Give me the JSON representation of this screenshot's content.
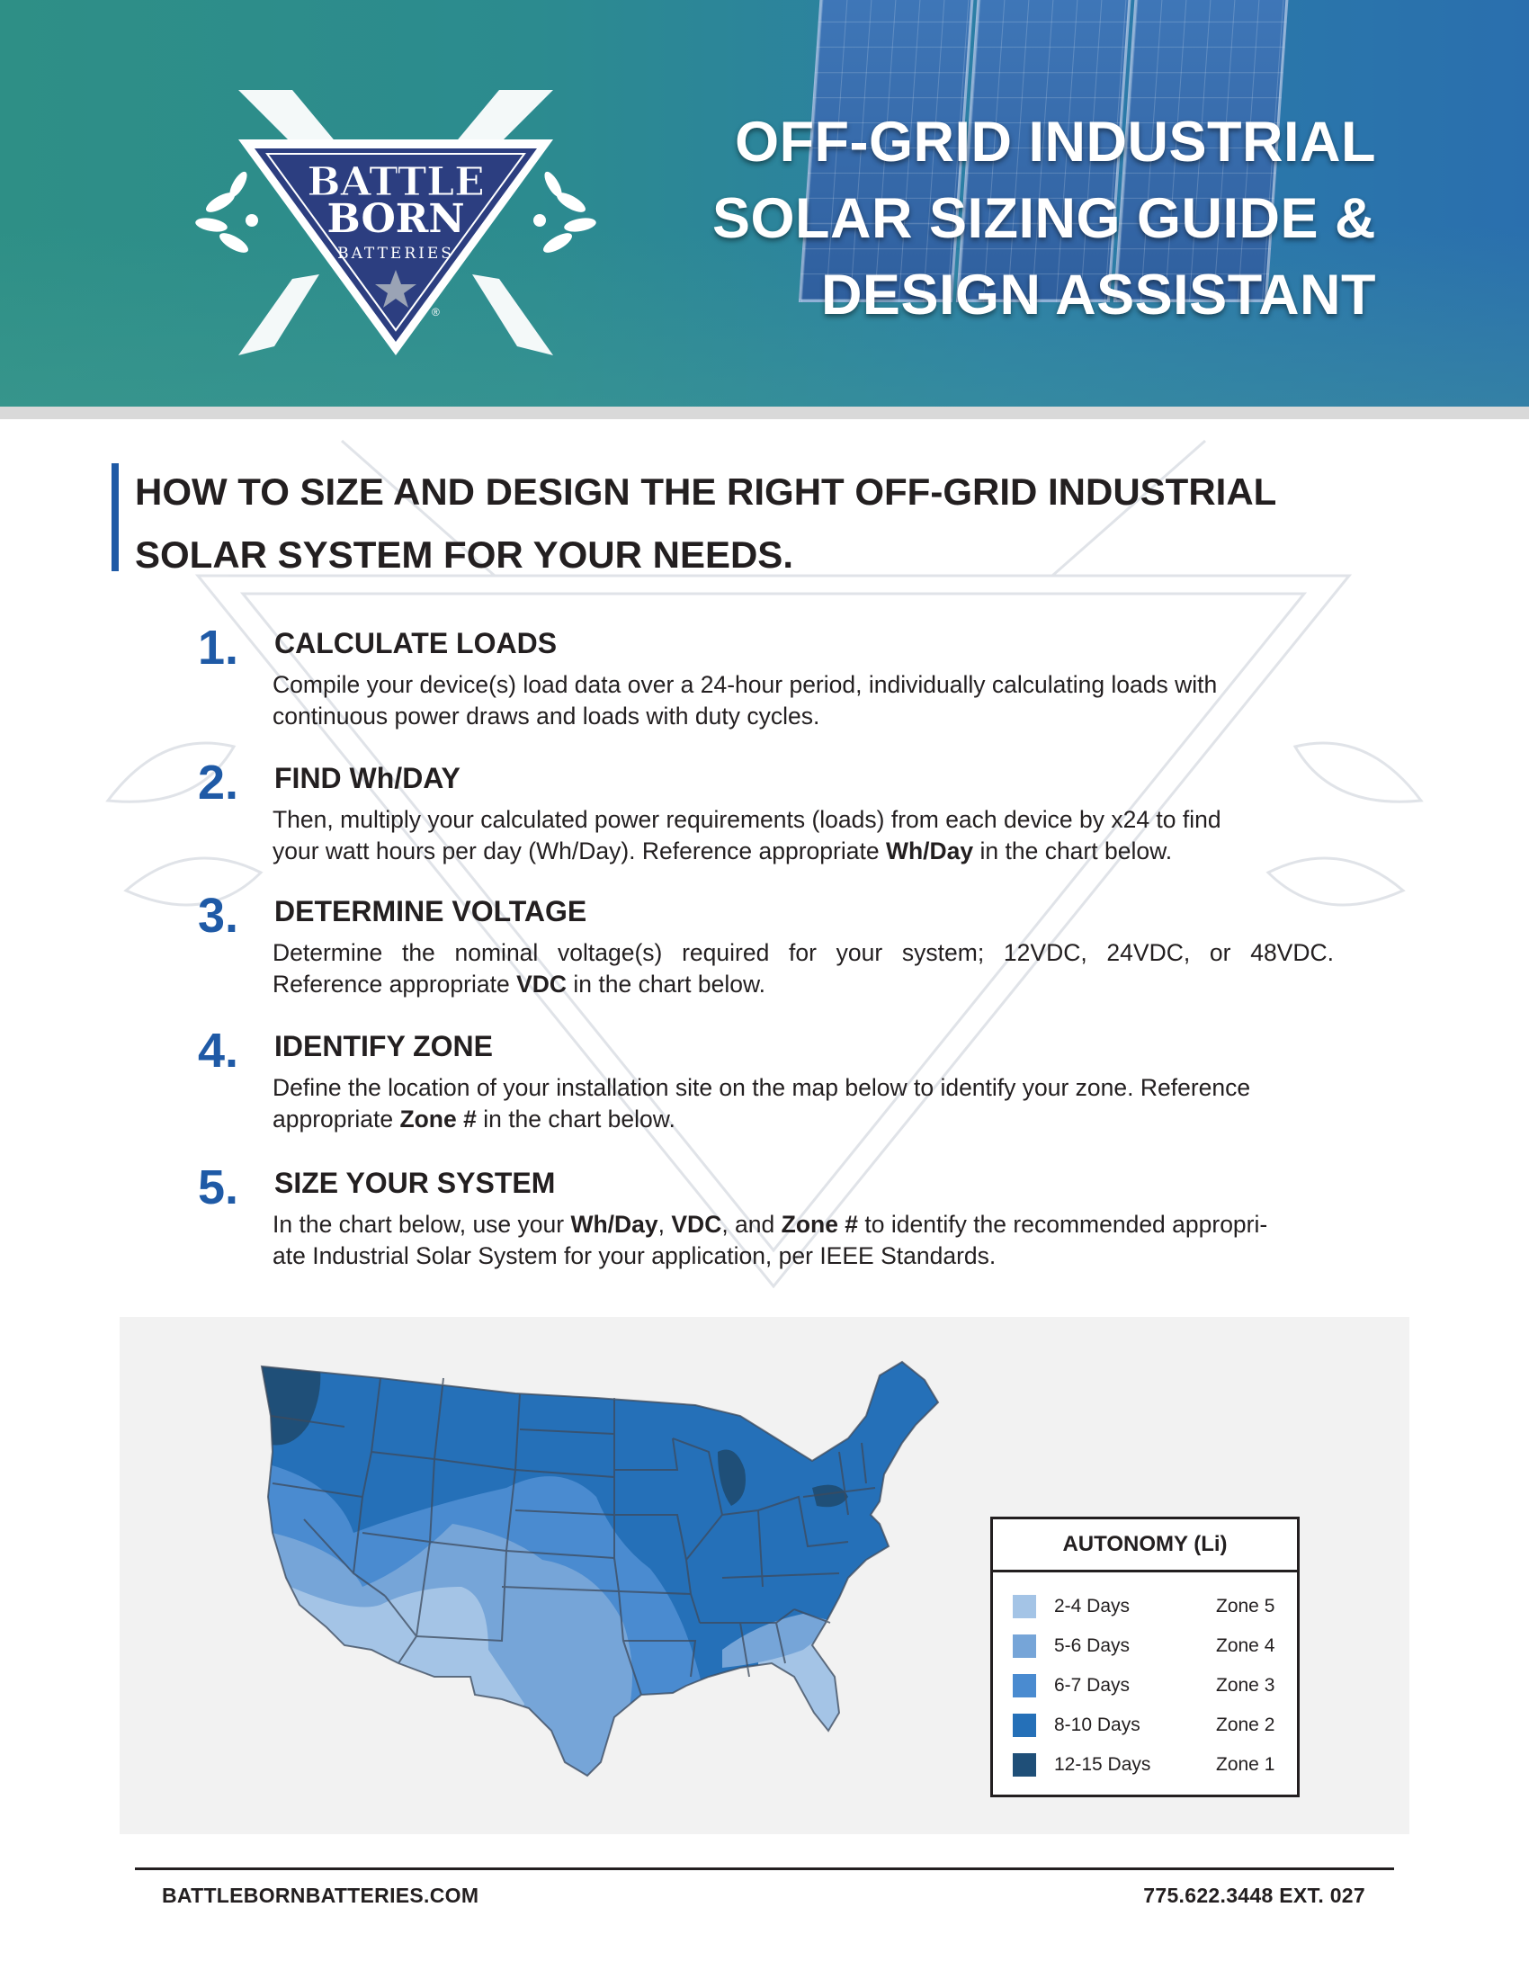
{
  "brand": {
    "logo_line1": "BATTLE",
    "logo_line2": "BORN",
    "logo_line3": "BATTERIES",
    "registered_mark": "®"
  },
  "hero": {
    "title_lines": [
      "OFF-GRID INDUSTRIAL",
      "SOLAR SIZING GUIDE &",
      "DESIGN ASSISTANT"
    ]
  },
  "heading": {
    "line1": "HOW TO SIZE AND DESIGN THE RIGHT OFF-GRID INDUSTRIAL",
    "line2": "SOLAR SYSTEM FOR YOUR NEEDS."
  },
  "steps": [
    {
      "number": "1.",
      "title": "CALCULATE LOADS",
      "body_line1": "Compile your device(s) load data over a 24-hour period, individually calculating loads with",
      "body_line2": "continuous power draws and loads with duty cycles."
    },
    {
      "number": "2.",
      "title": "FIND Wh/DAY",
      "body_line1": "Then, multiply your calculated power requirements (loads) from each device by x24 to find",
      "body_line2_pre": "your watt hours per day (Wh/Day). Reference appropriate ",
      "body_line2_bold": "Wh/Day",
      "body_line2_post": " in the chart below."
    },
    {
      "number": "3.",
      "title": "DETERMINE VOLTAGE",
      "body_line1": "Determine the nominal voltage(s) required for your system; 12VDC, 24VDC, or 48VDC.",
      "body_line2_pre": "Reference appropriate ",
      "body_line2_bold": "VDC",
      "body_line2_post": " in the chart below."
    },
    {
      "number": "4.",
      "title": "IDENTIFY ZONE",
      "body_line1": "Define the location of your installation site on the map below to identify your zone. Reference",
      "body_line2_pre": "appropriate ",
      "body_line2_bold": "Zone #",
      "body_line2_post": " in the chart below."
    },
    {
      "number": "5.",
      "title": "SIZE YOUR SYSTEM",
      "body_line1_pre": "In the chart below, use your ",
      "body_line1_b1": "Wh/Day",
      "body_line1_sep1": ", ",
      "body_line1_b2": "VDC",
      "body_line1_sep2": ", and ",
      "body_line1_b3": "Zone #",
      "body_line1_post": " to identify the recommended appropri-",
      "body_line2": "ate Industrial Solar System for your application, per IEEE Standards."
    }
  ],
  "legend": {
    "title": "AUTONOMY (Li)",
    "rows": [
      {
        "days": "2-4 Days",
        "zone": "Zone 5",
        "color": "#a4c4e6"
      },
      {
        "days": "5-6 Days",
        "zone": "Zone 4",
        "color": "#76a5d8"
      },
      {
        "days": "6-7 Days",
        "zone": "Zone 3",
        "color": "#4a8bd0"
      },
      {
        "days": "8-10 Days",
        "zone": "Zone 2",
        "color": "#2570b8"
      },
      {
        "days": "12-15 Days",
        "zone": "Zone 1",
        "color": "#1f4f78"
      }
    ]
  },
  "footer": {
    "url": "BATTLEBORNBATTERIES.COM",
    "phone": "775.622.3448 EXT. 027"
  },
  "colors": {
    "accent_blue": "#1f5aa6",
    "text_dark": "#231f20",
    "map_background": "#f2f2f2"
  }
}
